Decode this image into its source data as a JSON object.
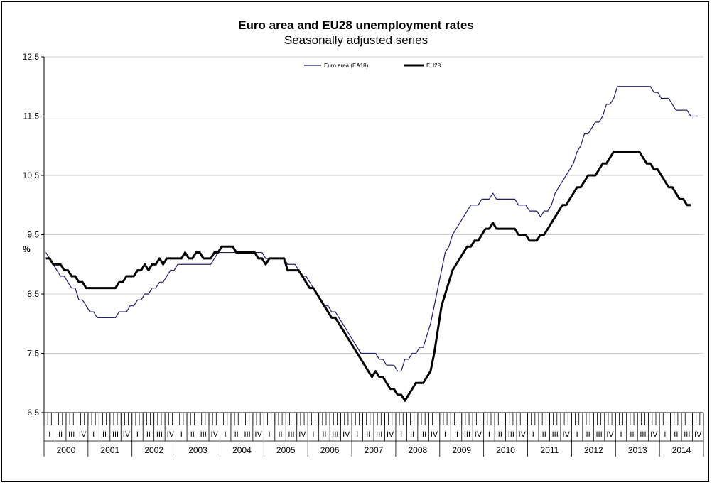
{
  "chart_data": {
    "type": "line",
    "title": "Euro area and EU28 unemployment rates",
    "subtitle": "Seasonally adjusted series",
    "ylabel": "%",
    "ylim": [
      6.5,
      12.5
    ],
    "y_ticks": [
      "12.5",
      "11.5",
      "10.5",
      "9.5",
      "8.5",
      "7.5",
      "6.5"
    ],
    "grid": "horizontal",
    "legend_position": "top",
    "x_frequency": "monthly",
    "x_start": "2000-01",
    "years": [
      "2000",
      "2001",
      "2002",
      "2003",
      "2004",
      "2005",
      "2006",
      "2007",
      "2008",
      "2009",
      "2010",
      "2011",
      "2012",
      "2013",
      "2014"
    ],
    "quarters": [
      "I",
      "II",
      "III",
      "IV"
    ],
    "series": [
      {
        "name": "Euro area (EA18)",
        "color": "#1f1f6b",
        "values": [
          9.2,
          9.1,
          9.0,
          8.9,
          8.8,
          8.8,
          8.7,
          8.6,
          8.6,
          8.4,
          8.4,
          8.3,
          8.2,
          8.2,
          8.1,
          8.1,
          8.1,
          8.1,
          8.1,
          8.1,
          8.2,
          8.2,
          8.2,
          8.3,
          8.3,
          8.4,
          8.4,
          8.5,
          8.5,
          8.6,
          8.6,
          8.7,
          8.7,
          8.8,
          8.9,
          8.9,
          9.0,
          9.0,
          9.0,
          9.0,
          9.0,
          9.0,
          9.0,
          9.0,
          9.0,
          9.0,
          9.1,
          9.2,
          9.2,
          9.2,
          9.2,
          9.2,
          9.2,
          9.2,
          9.2,
          9.2,
          9.2,
          9.2,
          9.2,
          9.2,
          9.1,
          9.1,
          9.1,
          9.1,
          9.1,
          9.1,
          9.0,
          9.0,
          9.0,
          8.9,
          8.8,
          8.8,
          8.7,
          8.6,
          8.5,
          8.4,
          8.3,
          8.3,
          8.2,
          8.2,
          8.1,
          8.0,
          7.9,
          7.8,
          7.7,
          7.6,
          7.5,
          7.5,
          7.5,
          7.5,
          7.5,
          7.4,
          7.4,
          7.3,
          7.3,
          7.3,
          7.2,
          7.2,
          7.4,
          7.4,
          7.5,
          7.5,
          7.6,
          7.6,
          7.8,
          8.0,
          8.3,
          8.6,
          8.9,
          9.2,
          9.3,
          9.5,
          9.6,
          9.7,
          9.8,
          9.9,
          10.0,
          10.0,
          10.0,
          10.1,
          10.1,
          10.1,
          10.2,
          10.1,
          10.1,
          10.1,
          10.1,
          10.1,
          10.1,
          10.0,
          10.0,
          10.0,
          9.9,
          9.9,
          9.9,
          9.8,
          9.9,
          9.9,
          10.0,
          10.2,
          10.3,
          10.4,
          10.5,
          10.6,
          10.7,
          10.9,
          11.0,
          11.2,
          11.2,
          11.3,
          11.4,
          11.4,
          11.5,
          11.7,
          11.7,
          11.8,
          12.0,
          12.0,
          12.0,
          12.0,
          12.0,
          12.0,
          12.0,
          12.0,
          12.0,
          12.0,
          11.9,
          11.9,
          11.8,
          11.8,
          11.8,
          11.7,
          11.6,
          11.6,
          11.6,
          11.6,
          11.5,
          11.5,
          11.5
        ]
      },
      {
        "name": "EU28",
        "color": "#000000",
        "values": [
          9.1,
          9.1,
          9.0,
          9.0,
          9.0,
          8.9,
          8.9,
          8.8,
          8.8,
          8.7,
          8.7,
          8.6,
          8.6,
          8.6,
          8.6,
          8.6,
          8.6,
          8.6,
          8.6,
          8.6,
          8.7,
          8.7,
          8.8,
          8.8,
          8.8,
          8.9,
          8.9,
          9.0,
          8.9,
          9.0,
          9.0,
          9.1,
          9.0,
          9.1,
          9.1,
          9.1,
          9.1,
          9.1,
          9.2,
          9.1,
          9.1,
          9.2,
          9.2,
          9.1,
          9.1,
          9.1,
          9.2,
          9.2,
          9.3,
          9.3,
          9.3,
          9.3,
          9.2,
          9.2,
          9.2,
          9.2,
          9.2,
          9.2,
          9.1,
          9.1,
          9.0,
          9.1,
          9.1,
          9.1,
          9.1,
          9.1,
          8.9,
          8.9,
          8.9,
          8.9,
          8.8,
          8.7,
          8.6,
          8.6,
          8.5,
          8.4,
          8.3,
          8.2,
          8.1,
          8.1,
          8.0,
          7.9,
          7.8,
          7.7,
          7.6,
          7.5,
          7.4,
          7.3,
          7.2,
          7.1,
          7.2,
          7.1,
          7.1,
          7.0,
          6.9,
          6.9,
          6.8,
          6.8,
          6.7,
          6.8,
          6.9,
          7.0,
          7.0,
          7.0,
          7.1,
          7.2,
          7.5,
          7.9,
          8.3,
          8.5,
          8.7,
          8.9,
          9.0,
          9.1,
          9.2,
          9.3,
          9.3,
          9.4,
          9.4,
          9.5,
          9.6,
          9.6,
          9.7,
          9.6,
          9.6,
          9.6,
          9.6,
          9.6,
          9.6,
          9.5,
          9.5,
          9.5,
          9.4,
          9.4,
          9.4,
          9.5,
          9.5,
          9.6,
          9.7,
          9.8,
          9.9,
          10.0,
          10.0,
          10.1,
          10.2,
          10.3,
          10.3,
          10.4,
          10.5,
          10.5,
          10.5,
          10.6,
          10.7,
          10.7,
          10.8,
          10.9,
          10.9,
          10.9,
          10.9,
          10.9,
          10.9,
          10.9,
          10.9,
          10.8,
          10.7,
          10.7,
          10.6,
          10.6,
          10.5,
          10.4,
          10.3,
          10.3,
          10.2,
          10.1,
          10.1,
          10.0,
          10.0
        ]
      }
    ]
  }
}
